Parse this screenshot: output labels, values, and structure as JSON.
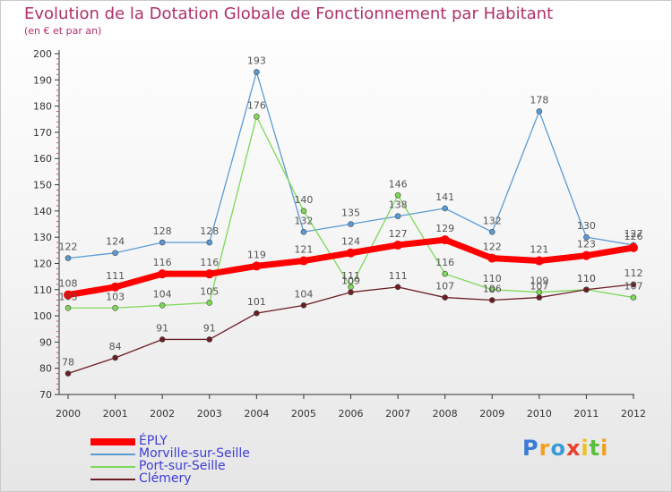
{
  "header": {
    "title": "Evolution de la Dotation Globale de Fonctionnement par Habitant",
    "subtitle": "(en € et par an)"
  },
  "chart_data": {
    "type": "line",
    "x": [
      "2000",
      "2001",
      "2002",
      "2003",
      "2004",
      "2005",
      "2006",
      "2007",
      "2008",
      "2009",
      "2010",
      "2011",
      "2012"
    ],
    "ylim": [
      70,
      200
    ],
    "yticks": [
      70,
      80,
      90,
      100,
      110,
      120,
      130,
      140,
      150,
      160,
      170,
      180,
      190,
      200
    ],
    "grid": false,
    "legend_position": "bottom-left",
    "series": [
      {
        "name": "ÉPLY",
        "color": "#ff0000",
        "values": [
          108,
          111,
          116,
          116,
          119,
          121,
          124,
          127,
          129,
          122,
          121,
          123,
          126
        ]
      },
      {
        "name": "Morville-sur-Seille",
        "color": "#5b9bd5",
        "values": [
          122,
          124,
          128,
          128,
          193,
          132,
          135,
          138,
          141,
          132,
          178,
          130,
          127
        ]
      },
      {
        "name": "Port-sur-Seille",
        "color": "#7ed957",
        "values": [
          103,
          103,
          104,
          105,
          176,
          140,
          111,
          146,
          116,
          110,
          109,
          110,
          107
        ]
      },
      {
        "name": "Clémery",
        "color": "#6b1d24",
        "values": [
          78,
          84,
          91,
          91,
          101,
          104,
          109,
          111,
          107,
          106,
          107,
          110,
          112
        ]
      }
    ]
  },
  "logo": {
    "letters": [
      "P",
      "r",
      "o",
      "x",
      "i",
      "t",
      "i"
    ],
    "colors": [
      "#3a7bd5",
      "#f0a020",
      "#3a9bd5",
      "#e8402a",
      "#f0c020",
      "#5bbf3a",
      "#f0a020"
    ]
  }
}
